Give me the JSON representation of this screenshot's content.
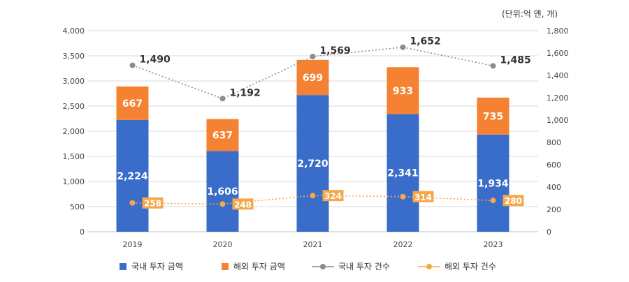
{
  "chart_data": {
    "type": "bar",
    "unit_label": "(단위:억 엔, 개)",
    "categories": [
      "2019",
      "2020",
      "2021",
      "2022",
      "2023"
    ],
    "left_axis": {
      "ylim": [
        0,
        4000
      ],
      "ticks": [
        0,
        500,
        1000,
        1500,
        2000,
        2500,
        3000,
        3500,
        4000
      ]
    },
    "right_axis": {
      "ylim": [
        0,
        1800
      ],
      "ticks": [
        0,
        200,
        400,
        600,
        800,
        1000,
        1200,
        1400,
        1600,
        1800
      ]
    },
    "grid": true,
    "legend_position": "bottom",
    "series": [
      {
        "name": "국내 투자 금액",
        "type": "stacked-bar",
        "axis": "left",
        "color": "#3a6cc9",
        "values": [
          2224,
          1606,
          2720,
          2341,
          1934
        ],
        "labels": [
          "2,224",
          "1,606",
          "2,720",
          "2,341",
          "1,934"
        ]
      },
      {
        "name": "해외 투자 금액",
        "type": "stacked-bar",
        "axis": "left",
        "color": "#f58232",
        "values": [
          667,
          637,
          699,
          933,
          735
        ],
        "labels": [
          "667",
          "637",
          "699",
          "933",
          "735"
        ]
      },
      {
        "name": "국내 투자 건수",
        "type": "line",
        "axis": "right",
        "color": "#8c8c8c",
        "values": [
          1490,
          1192,
          1569,
          1652,
          1485
        ],
        "labels": [
          "1,490",
          "1,192",
          "1,569",
          "1,652",
          "1,485"
        ]
      },
      {
        "name": "해외 투자 건수",
        "type": "line",
        "axis": "right",
        "color": "#f5a84b",
        "values": [
          258,
          248,
          324,
          314,
          280
        ],
        "labels": [
          "258",
          "248",
          "324",
          "314",
          "280"
        ]
      }
    ],
    "left_tick_labels": [
      "0",
      "500",
      "1,000",
      "1,500",
      "2,000",
      "2,500",
      "3,000",
      "3,500",
      "4,000"
    ],
    "right_tick_labels": [
      "0",
      "200",
      "400",
      "600",
      "800",
      "1,000",
      "1,200",
      "1,400",
      "1,600",
      "1,800"
    ]
  }
}
